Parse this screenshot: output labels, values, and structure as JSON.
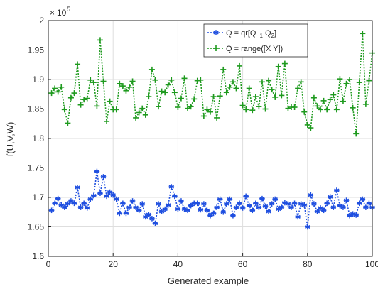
{
  "chart_data": {
    "type": "line",
    "xlabel": "Generated example",
    "ylabel": "f(U,V,W)",
    "y_exponent_label": "× 10^5",
    "xlim": [
      0,
      100
    ],
    "ylim": [
      1.6,
      2.0
    ],
    "x_ticks": [
      0,
      20,
      40,
      60,
      80,
      100
    ],
    "y_ticks": [
      1.6,
      1.65,
      1.7,
      1.75,
      1.8,
      1.85,
      1.9,
      1.95,
      2.0
    ],
    "x_tick_labels": [
      "0",
      "20",
      "40",
      "60",
      "80",
      "100"
    ],
    "y_tick_labels": [
      "1.6",
      "1.65",
      "1.7",
      "1.75",
      "1.8",
      "1.85",
      "1.9",
      "1.95",
      "2"
    ],
    "grid": true,
    "legend_position": "top-right",
    "series": [
      {
        "name": "Q = qr[Q_1 Q_2]",
        "legend_parts": {
          "main": "Q = qr[Q",
          "sub1": "1",
          "mid": " Q",
          "sub2": "2",
          "end": "]"
        },
        "color": "#1f4fe0",
        "marker": "asterisk",
        "x": [
          1,
          2,
          3,
          4,
          5,
          6,
          7,
          8,
          9,
          10,
          11,
          12,
          13,
          14,
          15,
          16,
          17,
          18,
          19,
          20,
          21,
          22,
          23,
          24,
          25,
          26,
          27,
          28,
          29,
          30,
          31,
          32,
          33,
          34,
          35,
          36,
          37,
          38,
          39,
          40,
          41,
          42,
          43,
          44,
          45,
          46,
          47,
          48,
          49,
          50,
          51,
          52,
          53,
          54,
          55,
          56,
          57,
          58,
          59,
          60,
          61,
          62,
          63,
          64,
          65,
          66,
          67,
          68,
          69,
          70,
          71,
          72,
          73,
          74,
          75,
          76,
          77,
          78,
          79,
          80,
          81,
          82,
          83,
          84,
          85,
          86,
          87,
          88,
          89,
          90,
          91,
          92,
          93,
          94,
          95,
          96,
          97,
          98,
          99,
          100
        ],
        "y": [
          1.678,
          1.69,
          1.698,
          1.687,
          1.683,
          1.689,
          1.694,
          1.69,
          1.717,
          1.683,
          1.69,
          1.682,
          1.697,
          1.703,
          1.744,
          1.707,
          1.735,
          1.702,
          1.709,
          1.704,
          1.697,
          1.673,
          1.69,
          1.673,
          1.683,
          1.694,
          1.683,
          1.678,
          1.689,
          1.667,
          1.671,
          1.664,
          1.656,
          1.689,
          1.676,
          1.68,
          1.687,
          1.718,
          1.702,
          1.68,
          1.694,
          1.68,
          1.678,
          1.686,
          1.69,
          1.69,
          1.679,
          1.689,
          1.678,
          1.669,
          1.673,
          1.683,
          1.697,
          1.675,
          1.689,
          1.697,
          1.669,
          1.683,
          1.69,
          1.682,
          1.702,
          1.686,
          1.678,
          1.69,
          1.683,
          1.698,
          1.685,
          1.676,
          1.689,
          1.697,
          1.68,
          1.683,
          1.691,
          1.689,
          1.683,
          1.69,
          1.667,
          1.689,
          1.687,
          1.65,
          1.704,
          1.689,
          1.676,
          1.682,
          1.678,
          1.69,
          1.701,
          1.683,
          1.712,
          1.686,
          1.683,
          1.695,
          1.669,
          1.672,
          1.67,
          1.69,
          1.697,
          1.683,
          1.69,
          1.683
        ]
      },
      {
        "name": "Q = range([X Y])",
        "color": "#1e9a1e",
        "marker": "plus",
        "x": [
          1,
          2,
          3,
          4,
          5,
          6,
          7,
          8,
          9,
          10,
          11,
          12,
          13,
          14,
          15,
          16,
          17,
          18,
          19,
          20,
          21,
          22,
          23,
          24,
          25,
          26,
          27,
          28,
          29,
          30,
          31,
          32,
          33,
          34,
          35,
          36,
          37,
          38,
          39,
          40,
          41,
          42,
          43,
          44,
          45,
          46,
          47,
          48,
          49,
          50,
          51,
          52,
          53,
          54,
          55,
          56,
          57,
          58,
          59,
          60,
          61,
          62,
          63,
          64,
          65,
          66,
          67,
          68,
          69,
          70,
          71,
          72,
          73,
          74,
          75,
          76,
          77,
          78,
          79,
          80,
          81,
          82,
          83,
          84,
          85,
          86,
          87,
          88,
          89,
          90,
          91,
          92,
          93,
          94,
          95,
          96,
          97,
          98,
          99,
          100
        ],
        "y": [
          1.877,
          1.885,
          1.879,
          1.887,
          1.849,
          1.826,
          1.869,
          1.877,
          1.926,
          1.857,
          1.866,
          1.868,
          1.899,
          1.895,
          1.855,
          1.967,
          1.897,
          1.829,
          1.863,
          1.849,
          1.849,
          1.893,
          1.889,
          1.881,
          1.887,
          1.897,
          1.835,
          1.844,
          1.851,
          1.84,
          1.871,
          1.917,
          1.899,
          1.854,
          1.88,
          1.878,
          1.891,
          1.899,
          1.878,
          1.853,
          1.868,
          1.902,
          1.851,
          1.854,
          1.867,
          1.898,
          1.899,
          1.838,
          1.849,
          1.845,
          1.871,
          1.835,
          1.872,
          1.917,
          1.878,
          1.887,
          1.896,
          1.885,
          1.923,
          1.856,
          1.849,
          1.885,
          1.848,
          1.871,
          1.854,
          1.896,
          1.85,
          1.898,
          1.883,
          1.87,
          1.922,
          1.873,
          1.927,
          1.851,
          1.853,
          1.853,
          1.885,
          1.896,
          1.845,
          1.823,
          1.818,
          1.869,
          1.855,
          1.849,
          1.864,
          1.849,
          1.866,
          1.874,
          1.849,
          1.901,
          1.863,
          1.893,
          1.9,
          1.852,
          1.808,
          1.895,
          1.978,
          1.858,
          1.898,
          1.945
        ]
      }
    ]
  }
}
